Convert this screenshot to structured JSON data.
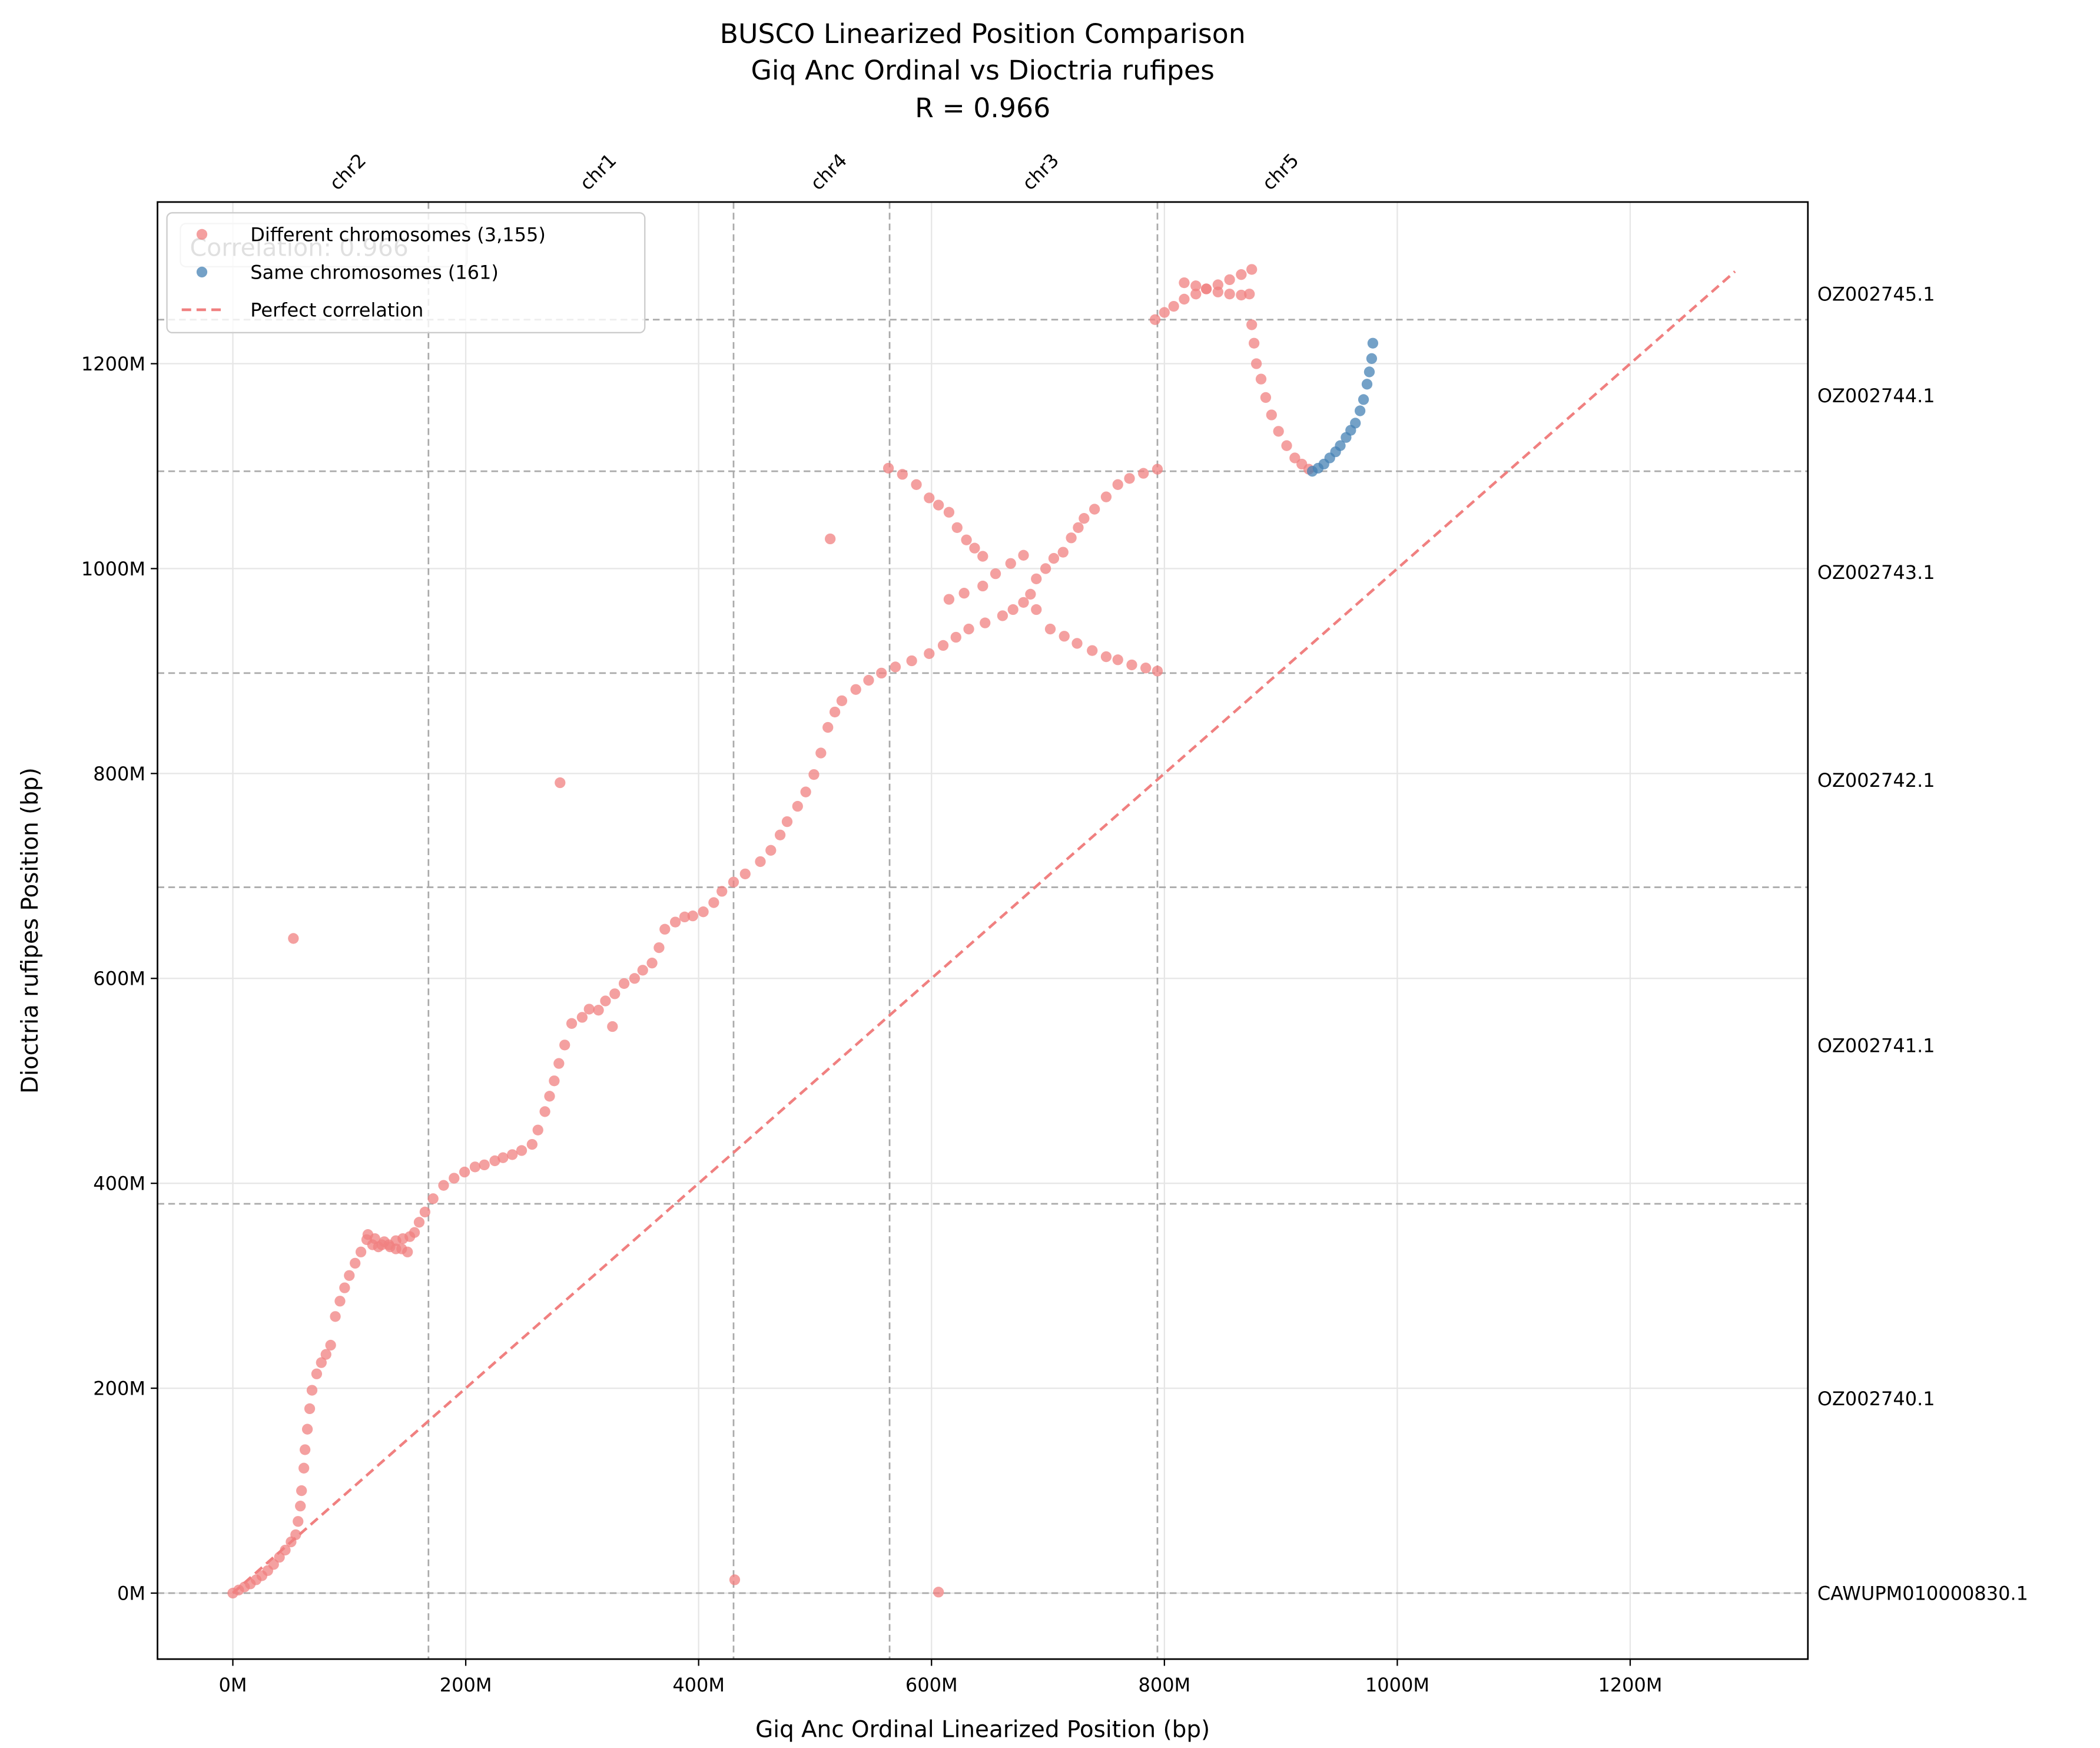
{
  "chart_data": {
    "type": "scatter",
    "title": "BUSCO Linearized Position Comparison",
    "subtitle": "Giq Anc Ordinal vs Dioctria rufipes",
    "annotation": "R = 0.966",
    "correlation_box": "Correlation: 0.966",
    "x_label": "Giq Anc Ordinal Linearized Position (bp)",
    "y_label": "Dioctria rufipes Position (bp)",
    "xlim": [
      -64700000,
      1352600000
    ],
    "ylim": [
      -64400000,
      1357800000
    ],
    "xticks": [
      {
        "value": 0,
        "label": "0M"
      },
      {
        "value": 200000000,
        "label": "200M"
      },
      {
        "value": 400000000,
        "label": "400M"
      },
      {
        "value": 600000000,
        "label": "600M"
      },
      {
        "value": 800000000,
        "label": "800M"
      },
      {
        "value": 1000000000,
        "label": "1000M"
      },
      {
        "value": 1200000000,
        "label": "1200M"
      }
    ],
    "yticks": [
      {
        "value": 0,
        "label": "0M"
      },
      {
        "value": 200000000,
        "label": "200M"
      },
      {
        "value": 400000000,
        "label": "400M"
      },
      {
        "value": 600000000,
        "label": "600M"
      },
      {
        "value": 800000000,
        "label": "800M"
      },
      {
        "value": 1000000000,
        "label": "1000M"
      },
      {
        "value": 1200000000,
        "label": "1200M"
      }
    ],
    "grid": true,
    "legend": "upper left",
    "x_regions": [
      {
        "label": "chr2",
        "start": 0,
        "end": 168000000
      },
      {
        "label": "chr1",
        "start": 168000000,
        "end": 430000000
      },
      {
        "label": "chr4",
        "start": 430000000,
        "end": 564000000
      },
      {
        "label": "chr3",
        "start": 564000000,
        "end": 794000000
      },
      {
        "label": "chr5",
        "start": 794000000,
        "end": 976000000
      }
    ],
    "y_regions": [
      {
        "label": "CAWUPM010000830.1",
        "start": 0,
        "end": 0
      },
      {
        "label": "OZ002740.1",
        "start": 0,
        "end": 380000000
      },
      {
        "label": "OZ002741.1",
        "start": 380000000,
        "end": 689000000
      },
      {
        "label": "OZ002742.1",
        "start": 689000000,
        "end": 898000000
      },
      {
        "label": "OZ002743.1",
        "start": 898000000,
        "end": 1095000000
      },
      {
        "label": "OZ002744.1",
        "start": 1095000000,
        "end": 1243000000
      },
      {
        "label": "OZ002745.1",
        "start": 1243000000,
        "end": 1293000000
      }
    ],
    "series": [
      {
        "name": "Different chromosomes (3,155)",
        "color": "#f08080",
        "x": [
          0,
          5000000,
          10000000,
          15000000,
          20000000,
          25000000,
          30000000,
          35000000,
          40000000,
          45000000,
          50000000,
          54000000,
          56000000,
          58000000,
          59000000,
          61000000,
          62000000,
          64000000,
          66000000,
          68000000,
          72000000,
          76000000,
          80000000,
          84000000,
          88000000,
          92000000,
          96000000,
          100000000,
          105000000,
          110000000,
          115000000,
          120000000,
          125000000,
          130000000,
          135000000,
          140000000,
          145000000,
          150000000,
          116000000,
          122000000,
          128000000,
          134000000,
          140000000,
          146000000,
          152000000,
          156000000,
          160000000,
          165000000,
          172000000,
          181000000,
          190000000,
          199000000,
          208000000,
          216000000,
          225000000,
          232000000,
          240000000,
          248000000,
          257000000,
          262000000,
          268000000,
          272000000,
          276000000,
          280000000,
          285000000,
          291000000,
          300000000,
          306000000,
          314000000,
          320000000,
          328000000,
          336000000,
          345000000,
          352000000,
          360000000,
          366000000,
          371000000,
          380000000,
          388000000,
          395000000,
          404000000,
          413000000,
          420000000,
          430000000,
          440000000,
          453000000,
          462000000,
          470000000,
          476000000,
          485000000,
          492000000,
          499000000,
          505000000,
          511000000,
          517000000,
          523000000,
          535000000,
          546000000,
          557000000,
          569000000,
          583000000,
          598000000,
          610000000,
          621000000,
          632000000,
          646000000,
          661000000,
          670000000,
          679000000,
          685000000,
          690000000,
          698000000,
          705000000,
          713000000,
          720000000,
          726000000,
          731000000,
          740000000,
          750000000,
          760000000,
          770000000,
          782000000,
          794000000,
          690000000,
          702000000,
          714000000,
          725000000,
          738000000,
          750000000,
          760000000,
          772000000,
          784000000,
          794000000,
          615000000,
          628000000,
          644000000,
          655000000,
          668000000,
          679000000,
          563000000,
          575000000,
          587000000,
          598000000,
          606000000,
          615000000,
          622000000,
          630000000,
          637000000,
          644000000,
          513000000,
          281000000,
          52000000,
          431000000,
          606000000,
          326000000,
          792000000,
          800000000,
          808000000,
          817000000,
          827000000,
          836000000,
          846000000,
          856000000,
          866000000,
          875000000,
          817000000,
          827000000,
          836000000,
          846000000,
          856000000,
          866000000,
          873000000,
          875000000,
          877000000,
          879000000,
          883000000,
          887000000,
          892000000,
          898000000,
          905000000,
          912000000,
          918000000,
          924000000
        ],
        "values": [
          0,
          3000000,
          6000000,
          9000000,
          13000000,
          17000000,
          22000000,
          28000000,
          35000000,
          42000000,
          50000000,
          57000000,
          70000000,
          85000000,
          100000000,
          122000000,
          140000000,
          160000000,
          180000000,
          198000000,
          214000000,
          225000000,
          233000000,
          242000000,
          270000000,
          285000000,
          298000000,
          310000000,
          322000000,
          333000000,
          345000000,
          340000000,
          338000000,
          343000000,
          338000000,
          336000000,
          336000000,
          333000000,
          350000000,
          346000000,
          340000000,
          340000000,
          344000000,
          346000000,
          348000000,
          352000000,
          362000000,
          372000000,
          385000000,
          398000000,
          405000000,
          411000000,
          416000000,
          418000000,
          422000000,
          425000000,
          428000000,
          432000000,
          438000000,
          452000000,
          470000000,
          485000000,
          500000000,
          517000000,
          535000000,
          556000000,
          562000000,
          570000000,
          569000000,
          578000000,
          585000000,
          595000000,
          600000000,
          608000000,
          615000000,
          630000000,
          648000000,
          655000000,
          660000000,
          661000000,
          665000000,
          674000000,
          685000000,
          694000000,
          702000000,
          714000000,
          725000000,
          740000000,
          753000000,
          768000000,
          782000000,
          799000000,
          820000000,
          845000000,
          860000000,
          871000000,
          882000000,
          891000000,
          898000000,
          904000000,
          910000000,
          917000000,
          925000000,
          933000000,
          941000000,
          947000000,
          954000000,
          960000000,
          967000000,
          975000000,
          990000000,
          1000000000,
          1010000000,
          1016000000,
          1030000000,
          1040000000,
          1049000000,
          1058000000,
          1070000000,
          1082000000,
          1088000000,
          1093000000,
          1097000000,
          960000000,
          941000000,
          934000000,
          927000000,
          920000000,
          914000000,
          911000000,
          906000000,
          903000000,
          900000000,
          970000000,
          976000000,
          983000000,
          995000000,
          1005000000,
          1013000000,
          1098000000,
          1092000000,
          1082000000,
          1069000000,
          1062000000,
          1055000000,
          1040000000,
          1028000000,
          1020000000,
          1012000000,
          1029000000,
          791000000,
          639000000,
          13000000,
          1000000,
          553000000,
          1243000000,
          1250000000,
          1256000000,
          1263000000,
          1268000000,
          1273000000,
          1277000000,
          1282000000,
          1287000000,
          1292000000,
          1279000000,
          1276000000,
          1273000000,
          1270000000,
          1268000000,
          1267000000,
          1268000000,
          1238000000,
          1220000000,
          1200000000,
          1185000000,
          1167000000,
          1150000000,
          1134000000,
          1120000000,
          1108000000,
          1102000000,
          1097000000
        ]
      },
      {
        "name": "Same chromosomes (161)",
        "color": "#4682b4",
        "x": [
          927000000,
          932000000,
          937000000,
          942000000,
          947000000,
          951000000,
          956000000,
          960000000,
          964000000,
          968000000,
          971000000,
          974000000,
          976000000,
          978000000,
          979000000
        ],
        "values": [
          1095000000,
          1098000000,
          1102000000,
          1108000000,
          1114000000,
          1120000000,
          1128000000,
          1135000000,
          1142000000,
          1154000000,
          1165000000,
          1180000000,
          1192000000,
          1205000000,
          1220000000
        ]
      }
    ],
    "reference_line": {
      "name": "Perfect correlation",
      "color": "#f08080",
      "x": [
        0,
        1290000000
      ],
      "values": [
        0,
        1290000000
      ]
    }
  }
}
